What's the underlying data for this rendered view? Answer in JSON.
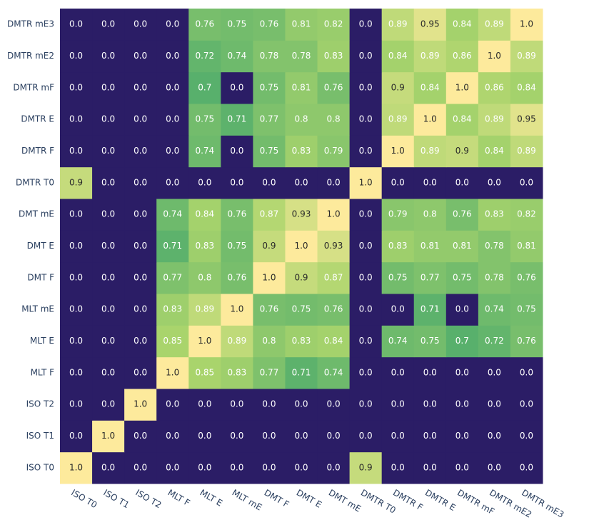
{
  "chart_data": {
    "type": "heatmap",
    "x": [
      "ISO T0",
      "ISO T1",
      "ISO T2",
      "MLT F",
      "MLT E",
      "MLT mE",
      "DMT F",
      "DMT E",
      "DMT mE",
      "DMTR T0",
      "DMTR F",
      "DMTR E",
      "DMTR mF",
      "DMTR mE2",
      "DMTR mE3"
    ],
    "y": [
      "ISO T0",
      "ISO T1",
      "ISO T2",
      "MLT F",
      "MLT E",
      "MLT mE",
      "DMT F",
      "DMT E",
      "DMT mE",
      "DMTR T0",
      "DMTR F",
      "DMTR E",
      "DMTR mF",
      "DMTR mE2",
      "DMTR mE3"
    ],
    "z": [
      [
        1,
        0,
        0,
        0,
        0,
        0,
        0,
        0,
        0,
        0.9,
        0,
        0,
        0,
        0,
        0
      ],
      [
        0,
        1,
        0,
        0,
        0,
        0,
        0,
        0,
        0,
        0,
        0,
        0,
        0,
        0,
        0
      ],
      [
        0,
        0,
        1,
        0,
        0,
        0,
        0,
        0,
        0,
        0,
        0,
        0,
        0,
        0,
        0
      ],
      [
        0,
        0,
        0,
        1,
        0.85,
        0.83,
        0.77,
        0.71,
        0.74,
        0,
        0,
        0,
        0,
        0,
        0
      ],
      [
        0,
        0,
        0,
        0.85,
        1,
        0.89,
        0.8,
        0.83,
        0.84,
        0,
        0.74,
        0.75,
        0.7,
        0.72,
        0.76
      ],
      [
        0,
        0,
        0,
        0.83,
        0.89,
        1,
        0.76,
        0.75,
        0.76,
        0,
        0,
        0.71,
        0,
        0.74,
        0.75
      ],
      [
        0,
        0,
        0,
        0.77,
        0.8,
        0.76,
        1,
        0.9,
        0.87,
        0,
        0.75,
        0.77,
        0.75,
        0.78,
        0.76
      ],
      [
        0,
        0,
        0,
        0.71,
        0.83,
        0.75,
        0.9,
        1,
        0.93,
        0,
        0.83,
        0.81,
        0.81,
        0.78,
        0.81
      ],
      [
        0,
        0,
        0,
        0.74,
        0.84,
        0.76,
        0.87,
        0.93,
        1,
        0,
        0.79,
        0.8,
        0.76,
        0.83,
        0.82
      ],
      [
        0.9,
        0,
        0,
        0,
        0,
        0,
        0,
        0,
        0,
        1,
        0,
        0,
        0,
        0,
        0
      ],
      [
        0,
        0,
        0,
        0,
        0.74,
        0,
        0.75,
        0.83,
        0.79,
        0,
        1,
        0.89,
        0.9,
        0.84,
        0.89
      ],
      [
        0,
        0,
        0,
        0,
        0.75,
        0.71,
        0.77,
        0.8,
        0.8,
        0,
        0.89,
        1,
        0.84,
        0.89,
        0.95
      ],
      [
        0,
        0,
        0,
        0,
        0.7,
        0,
        0.75,
        0.81,
        0.76,
        0,
        0.9,
        0.84,
        1,
        0.86,
        0.84
      ],
      [
        0,
        0,
        0,
        0,
        0.72,
        0.74,
        0.78,
        0.78,
        0.83,
        0,
        0.84,
        0.89,
        0.86,
        1,
        0.89
      ],
      [
        0,
        0,
        0,
        0,
        0.76,
        0.75,
        0.76,
        0.81,
        0.82,
        0,
        0.89,
        0.95,
        0.84,
        0.89,
        1
      ]
    ],
    "value_labels": [
      [
        "1.0",
        "0.0",
        "0.0",
        "0.0",
        "0.0",
        "0.0",
        "0.0",
        "0.0",
        "0.0",
        "0.9",
        "0.0",
        "0.0",
        "0.0",
        "0.0",
        "0.0"
      ],
      [
        "0.0",
        "1.0",
        "0.0",
        "0.0",
        "0.0",
        "0.0",
        "0.0",
        "0.0",
        "0.0",
        "0.0",
        "0.0",
        "0.0",
        "0.0",
        "0.0",
        "0.0"
      ],
      [
        "0.0",
        "0.0",
        "1.0",
        "0.0",
        "0.0",
        "0.0",
        "0.0",
        "0.0",
        "0.0",
        "0.0",
        "0.0",
        "0.0",
        "0.0",
        "0.0",
        "0.0"
      ],
      [
        "0.0",
        "0.0",
        "0.0",
        "1.0",
        "0.85",
        "0.83",
        "0.77",
        "0.71",
        "0.74",
        "0.0",
        "0.0",
        "0.0",
        "0.0",
        "0.0",
        "0.0"
      ],
      [
        "0.0",
        "0.0",
        "0.0",
        "0.85",
        "1.0",
        "0.89",
        "0.8",
        "0.83",
        "0.84",
        "0.0",
        "0.74",
        "0.75",
        "0.7",
        "0.72",
        "0.76"
      ],
      [
        "0.0",
        "0.0",
        "0.0",
        "0.83",
        "0.89",
        "1.0",
        "0.76",
        "0.75",
        "0.76",
        "0.0",
        "0.0",
        "0.71",
        "0.0",
        "0.74",
        "0.75"
      ],
      [
        "0.0",
        "0.0",
        "0.0",
        "0.77",
        "0.8",
        "0.76",
        "1.0",
        "0.9",
        "0.87",
        "0.0",
        "0.75",
        "0.77",
        "0.75",
        "0.78",
        "0.76"
      ],
      [
        "0.0",
        "0.0",
        "0.0",
        "0.71",
        "0.83",
        "0.75",
        "0.9",
        "1.0",
        "0.93",
        "0.0",
        "0.83",
        "0.81",
        "0.81",
        "0.78",
        "0.81"
      ],
      [
        "0.0",
        "0.0",
        "0.0",
        "0.74",
        "0.84",
        "0.76",
        "0.87",
        "0.93",
        "1.0",
        "0.0",
        "0.79",
        "0.8",
        "0.76",
        "0.83",
        "0.82"
      ],
      [
        "0.9",
        "0.0",
        "0.0",
        "0.0",
        "0.0",
        "0.0",
        "0.0",
        "0.0",
        "0.0",
        "1.0",
        "0.0",
        "0.0",
        "0.0",
        "0.0",
        "0.0"
      ],
      [
        "0.0",
        "0.0",
        "0.0",
        "0.0",
        "0.74",
        "0.0",
        "0.75",
        "0.83",
        "0.79",
        "0.0",
        "1.0",
        "0.89",
        "0.9",
        "0.84",
        "0.89"
      ],
      [
        "0.0",
        "0.0",
        "0.0",
        "0.0",
        "0.75",
        "0.71",
        "0.77",
        "0.8",
        "0.8",
        "0.0",
        "0.89",
        "1.0",
        "0.84",
        "0.89",
        "0.95"
      ],
      [
        "0.0",
        "0.0",
        "0.0",
        "0.0",
        "0.7",
        "0.0",
        "0.75",
        "0.81",
        "0.76",
        "0.0",
        "0.9",
        "0.84",
        "1.0",
        "0.86",
        "0.84"
      ],
      [
        "0.0",
        "0.0",
        "0.0",
        "0.0",
        "0.72",
        "0.74",
        "0.78",
        "0.78",
        "0.83",
        "0.0",
        "0.84",
        "0.89",
        "0.86",
        "1.0",
        "0.89"
      ],
      [
        "0.0",
        "0.0",
        "0.0",
        "0.0",
        "0.76",
        "0.75",
        "0.76",
        "0.81",
        "0.82",
        "0.0",
        "0.89",
        "0.95",
        "0.84",
        "0.89",
        "1.0"
      ]
    ],
    "colorscale": [
      [
        0,
        "#2b1d66"
      ],
      [
        0.7,
        "#58b06c"
      ],
      [
        0.85,
        "#a9d46c"
      ],
      [
        1,
        "#fdea9c"
      ]
    ]
  }
}
